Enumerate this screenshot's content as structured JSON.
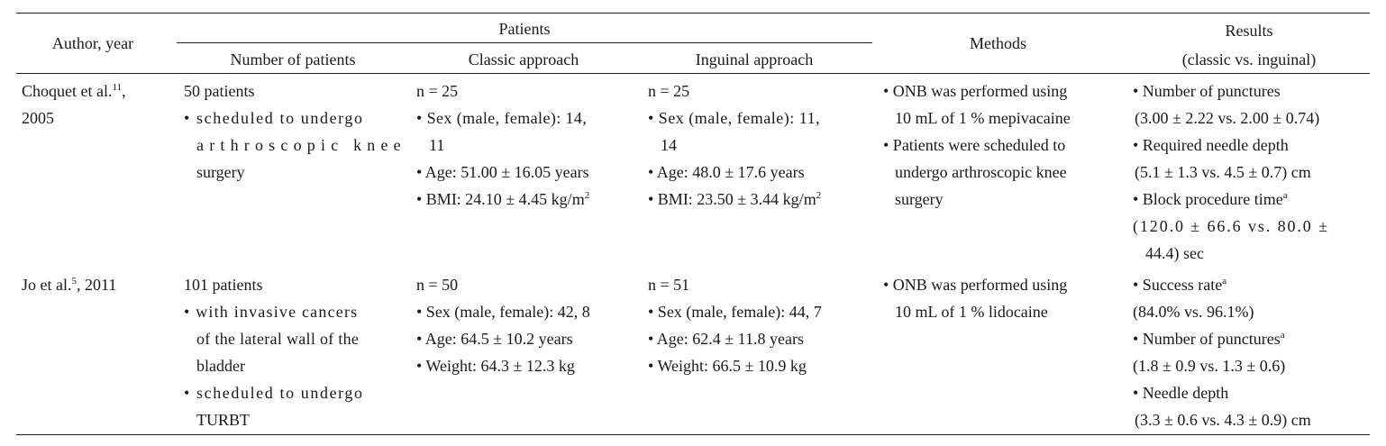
{
  "header": {
    "author_year": "Author, year",
    "patients": "Patients",
    "number_of_patients": "Number of patients",
    "classic_approach": "Classic approach",
    "inguinal_approach": "Inguinal approach",
    "methods": "Methods",
    "results_line1": "Results",
    "results_line2": "(classic vs. inguinal)"
  },
  "rows": [
    {
      "author": {
        "name": "Choquet et al.",
        "ref": "11",
        "suffix": ",",
        "year": "2005"
      },
      "number_of_patients": {
        "count": "50 patients",
        "bullets": [
          "• scheduled to undergo",
          "arthroscopic knee",
          "surgery"
        ]
      },
      "classic": {
        "n": "n = 25",
        "sex_l1": "• Sex (male, female): 14,",
        "sex_l2": "11",
        "age": "• Age: 51.00 ± 16.05 years",
        "bmi": "• BMI: 24.10 ± 4.45 kg/m",
        "bmi_sup": "2"
      },
      "inguinal": {
        "n": "n = 25",
        "sex_l1": "• Sex (male, female): 11,",
        "sex_l2": "14",
        "age": "• Age: 48.0 ± 17.6 years",
        "bmi": "• BMI: 23.50 ± 3.44 kg/m",
        "bmi_sup": "2"
      },
      "methods": [
        "• ONB was performed using",
        "10 mL of 1 % mepivacaine",
        "• Patients were scheduled to",
        "undergo arthroscopic knee",
        "surgery"
      ],
      "results": {
        "punctures_label": "• Number of punctures",
        "punctures_value": "(3.00 ± 2.22 vs. 2.00 ± 0.74)",
        "depth_label": "• Required needle depth",
        "depth_value": "(5.1 ± 1.3 vs. 4.5 ± 0.7) cm",
        "time_label": "• Block procedure time",
        "time_sup": "a",
        "time_value_l1": "(120.0 ± 66.6 vs. 80.0 ±",
        "time_value_l2": "44.4) sec"
      }
    },
    {
      "author": {
        "name": "Jo et al.",
        "ref": "5",
        "suffix": ", 2011"
      },
      "number_of_patients": {
        "count": "101 patients",
        "bullet1_l1": "• with invasive cancers",
        "bullet1_l2": "of the lateral wall of the",
        "bullet1_l3": "bladder",
        "bullet2_l1": "• scheduled to undergo",
        "bullet2_l2": "TURBT"
      },
      "classic": {
        "n": "n = 50",
        "sex": "• Sex (male, female): 42, 8",
        "age": "• Age: 64.5 ± 10.2 years",
        "weight": "• Weight: 64.3 ± 12.3 kg"
      },
      "inguinal": {
        "n": "n = 51",
        "sex": "• Sex (male, female): 44, 7",
        "age": "• Age: 62.4 ± 11.8 years",
        "weight": "• Weight: 66.5 ± 10.9 kg"
      },
      "methods": [
        "• ONB was performed using",
        "10 mL of 1 % lidocaine"
      ],
      "results": {
        "success_label": "• Success rate",
        "success_sup": "a",
        "success_value": "(84.0% vs. 96.1%)",
        "punctures_label": "• Number of punctures",
        "punctures_sup": "a",
        "punctures_value": "(1.8 ± 0.9 vs. 1.3 ± 0.6)",
        "depth_label": "• Needle depth",
        "depth_value": "(3.3 ± 0.6 vs. 4.3 ± 0.9) cm"
      }
    }
  ]
}
